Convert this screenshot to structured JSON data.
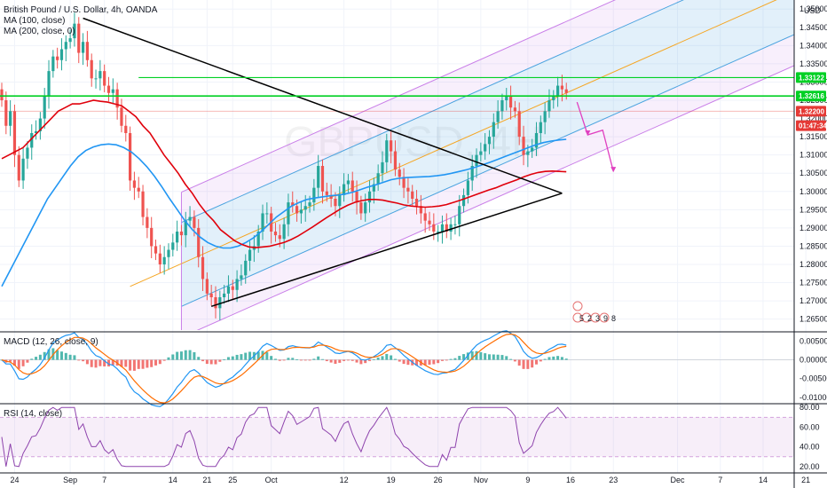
{
  "legend": {
    "symbol": "British Pound / U.S. Dollar, 4h, OANDA",
    "ma100": "MA (100, close)",
    "ma200": "MA (200, close, 0)",
    "macd": "MACD (12, 26, close, 9)",
    "rsi": "RSI (14, close)"
  },
  "watermark": "GBPUSD, 4H",
  "currency": "USD",
  "colors": {
    "up": "#26a69a",
    "down": "#ef5350",
    "ma100": "#e0000b",
    "ma200": "#2196f3",
    "channel": "#c97ee8",
    "channelInner": "#4aa3df",
    "median": "#f5a623",
    "horizontal": "#00d024",
    "triangle": "#000000",
    "arrow": "#e040c0",
    "macdLine": "#2196f3",
    "signalLine": "#ff6d00",
    "rsiLine": "#8e44ad"
  },
  "chart_data": [
    {
      "type": "line",
      "name": "price",
      "ylim": [
        1.262,
        1.352
      ],
      "y_ticks": [
        "1.35000",
        "1.34500",
        "1.34000",
        "1.33500",
        "1.33000",
        "1.32500",
        "1.32000",
        "1.31500",
        "1.31000",
        "1.30500",
        "1.30000",
        "1.29500",
        "1.29000",
        "1.28500",
        "1.28000",
        "1.27500",
        "1.27000",
        "1.26500"
      ],
      "x_ticks": [
        {
          "t": 3,
          "label": "24"
        },
        {
          "t": 16,
          "label": "Sep"
        },
        {
          "t": 24,
          "label": "7"
        },
        {
          "t": 40,
          "label": "14"
        },
        {
          "t": 48,
          "label": "21"
        },
        {
          "t": 54,
          "label": "25"
        },
        {
          "t": 63,
          "label": "Oct"
        },
        {
          "t": 80,
          "label": "12"
        },
        {
          "t": 91,
          "label": "19"
        },
        {
          "t": 102,
          "label": "26"
        },
        {
          "t": 112,
          "label": "Nov"
        },
        {
          "t": 123,
          "label": "9"
        },
        {
          "t": 133,
          "label": "16"
        },
        {
          "t": 143,
          "label": "23"
        },
        {
          "t": 158,
          "label": "Dec"
        },
        {
          "t": 168,
          "label": "7"
        },
        {
          "t": 178,
          "label": "14"
        },
        {
          "t": 188,
          "label": "21"
        }
      ],
      "close": [
        1.325,
        1.318,
        1.322,
        1.31,
        1.303,
        1.309,
        1.312,
        1.316,
        1.3165,
        1.32,
        1.326,
        1.333,
        1.337,
        1.336,
        1.339,
        1.341,
        1.342,
        1.346,
        1.338,
        1.341,
        1.336,
        1.331,
        1.331,
        1.333,
        1.329,
        1.327,
        1.328,
        1.323,
        1.318,
        1.316,
        1.303,
        1.301,
        1.3,
        1.293,
        1.29,
        1.285,
        1.283,
        1.28,
        1.282,
        1.284,
        1.286,
        1.289,
        1.288,
        1.292,
        1.293,
        1.29,
        1.282,
        1.276,
        1.272,
        1.271,
        1.268,
        1.271,
        1.272,
        1.274,
        1.273,
        1.276,
        1.277,
        1.281,
        1.284,
        1.285,
        1.289,
        1.294,
        1.294,
        1.289,
        1.288,
        1.287,
        1.291,
        1.297,
        1.296,
        1.294,
        1.295,
        1.296,
        1.297,
        1.301,
        1.307,
        1.3,
        1.299,
        1.298,
        1.296,
        1.299,
        1.302,
        1.303,
        1.3,
        1.297,
        1.294,
        1.297,
        1.3,
        1.302,
        1.305,
        1.308,
        1.314,
        1.311,
        1.306,
        1.304,
        1.301,
        1.3,
        1.298,
        1.296,
        1.294,
        1.292,
        1.291,
        1.289,
        1.289,
        1.291,
        1.289,
        1.291,
        1.291,
        1.296,
        1.299,
        1.303,
        1.307,
        1.31,
        1.311,
        1.313,
        1.315,
        1.319,
        1.322,
        1.325,
        1.326,
        1.323,
        1.322,
        1.315,
        1.31,
        1.311,
        1.312,
        1.316,
        1.319,
        1.322,
        1.325,
        1.326,
        1.329,
        1.328,
        1.327
      ],
      "ma100": [
        1.309,
        1.31,
        1.311,
        1.312,
        1.314,
        1.316,
        1.318,
        1.32,
        1.322,
        1.323,
        1.324,
        1.324,
        1.3245,
        1.325,
        1.3247,
        1.3245,
        1.324,
        1.3235,
        1.322,
        1.3205,
        1.318,
        1.316,
        1.313,
        1.31,
        1.3075,
        1.305,
        1.302,
        1.2995,
        1.2965,
        1.294,
        1.292,
        1.2895,
        1.288,
        1.2865,
        1.2855,
        1.2848,
        1.2846,
        1.2848,
        1.285,
        1.2855,
        1.286,
        1.2868,
        1.2878,
        1.289,
        1.2902,
        1.2915,
        1.2928,
        1.294,
        1.2952,
        1.2962,
        1.297,
        1.2975,
        1.2978,
        1.2978,
        1.2976,
        1.2972,
        1.2968,
        1.2963,
        1.296,
        1.2958,
        1.2957,
        1.2958,
        1.296,
        1.2964,
        1.297,
        1.2976,
        1.2983,
        1.299,
        1.2997,
        1.3004,
        1.301,
        1.3018,
        1.3025,
        1.3032,
        1.304,
        1.3047,
        1.3052,
        1.3055,
        1.3056,
        1.3055,
        1.3054
      ],
      "ma100_start": 0,
      "ma200": [
        1.274,
        1.278,
        1.282,
        1.286,
        1.29,
        1.294,
        1.298,
        1.301,
        1.304,
        1.307,
        1.3095,
        1.3112,
        1.3122,
        1.3128,
        1.313,
        1.3128,
        1.312,
        1.3108,
        1.309,
        1.3068,
        1.3042,
        1.3012,
        1.298,
        1.295,
        1.292,
        1.2895,
        1.2875,
        1.286,
        1.285,
        1.2845,
        1.2845,
        1.285,
        1.286,
        1.2873,
        1.289,
        1.291,
        1.293,
        1.2945,
        1.296,
        1.297,
        1.2978,
        1.2982,
        1.2985,
        1.2988,
        1.299,
        1.2993,
        1.2998,
        1.3005,
        1.3012,
        1.3018,
        1.3025,
        1.3032,
        1.3036,
        1.3038,
        1.3039,
        1.304,
        1.3041,
        1.3043,
        1.3046,
        1.305,
        1.3055,
        1.306,
        1.3066,
        1.3073,
        1.308,
        1.3088,
        1.3096,
        1.3104,
        1.3112,
        1.312,
        1.3128,
        1.3134,
        1.3138,
        1.3141,
        1.3143
      ],
      "ma200_start": 0
    },
    {
      "type": "bar",
      "name": "MACD",
      "ylim": [
        -0.011,
        0.007
      ],
      "y_ticks": [
        "0.00500",
        "0.00000",
        "-0.00500",
        "-0.01000"
      ]
    },
    {
      "type": "line",
      "name": "RSI",
      "ylim": [
        18,
        82
      ],
      "y_ticks": [
        "80.00",
        "60.00",
        "40.00",
        "20.00"
      ],
      "band": [
        30,
        70
      ]
    }
  ],
  "price_tags": [
    {
      "label": "1.33122",
      "value": 1.33122,
      "bg": "#00d024",
      "fg": "#ffffff"
    },
    {
      "label": "1.32616",
      "value": 1.32616,
      "bg": "#00d024",
      "fg": "#ffffff"
    },
    {
      "label": "1.32200",
      "value": 1.322,
      "bg": "#e53935",
      "fg": "#ffffff"
    },
    {
      "label": "01:47:34",
      "value": 1.3195,
      "bg": "#e53935",
      "fg": "#ffffff"
    }
  ],
  "event_labels": [
    "5",
    "2",
    "3",
    "9",
    "8"
  ]
}
